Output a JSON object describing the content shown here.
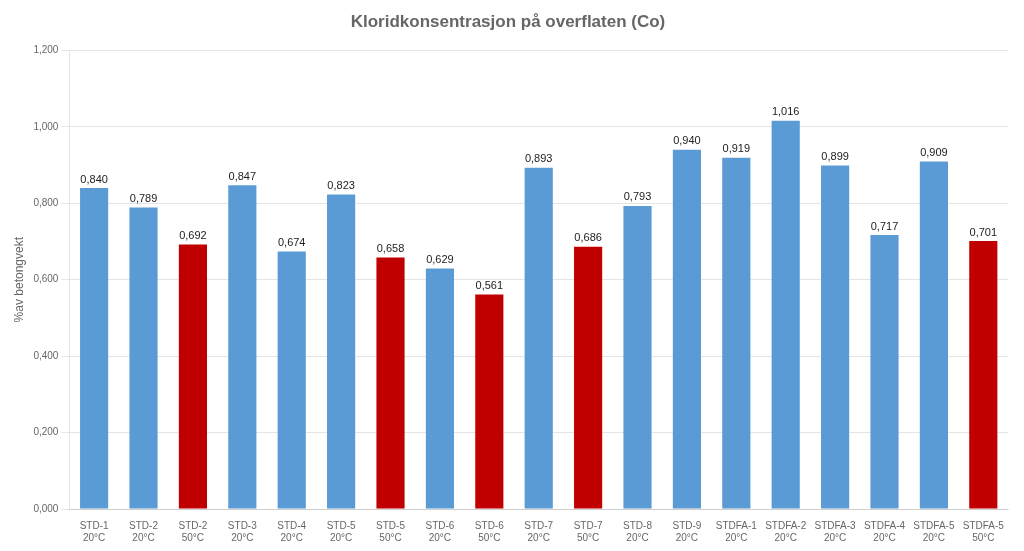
{
  "chart_data": {
    "type": "bar",
    "title": "Kloridkonsentrasjon på overflaten (Co)",
    "ylabel": "%av betongvekt",
    "categories": [
      "STD-1\n20°C",
      "STD-2\n20°C",
      "STD-2\n50°C",
      "STD-3\n20°C",
      "STD-4\n20°C",
      "STD-5\n20°C",
      "STD-5\n50°C",
      "STD-6\n20°C",
      "STD-6\n50°C",
      "STD-7\n20°C",
      "STD-7\n50°C",
      "STD-8\n20°C",
      "STD-9\n20°C",
      "STDFA-1\n20°C",
      "STDFA-2\n20°C",
      "STDFA-3\n20°C",
      "STDFA-4\n20°C",
      "STDFA-5\n20°C",
      "STDFA-5\n50°C"
    ],
    "values": [
      0.84,
      0.789,
      0.692,
      0.847,
      0.674,
      0.823,
      0.658,
      0.629,
      0.561,
      0.893,
      0.686,
      0.793,
      0.94,
      0.919,
      1.016,
      0.899,
      0.717,
      0.909,
      0.701
    ],
    "value_labels": [
      "0,840",
      "0,789",
      "0,692",
      "0,847",
      "0,674",
      "0,823",
      "0,658",
      "0,629",
      "0,561",
      "0,893",
      "0,686",
      "0,793",
      "0,940",
      "0,919",
      "1,016",
      "0,899",
      "0,717",
      "0,909",
      "0,701"
    ],
    "data_labels": true,
    "colors": [
      "#5b9bd5",
      "#5b9bd5",
      "#c00000",
      "#5b9bd5",
      "#5b9bd5",
      "#5b9bd5",
      "#c00000",
      "#5b9bd5",
      "#c00000",
      "#5b9bd5",
      "#c00000",
      "#5b9bd5",
      "#5b9bd5",
      "#5b9bd5",
      "#5b9bd5",
      "#5b9bd5",
      "#5b9bd5",
      "#5b9bd5",
      "#c00000"
    ],
    "ylim": [
      0,
      1.2
    ],
    "yticks": [
      {
        "value": 0.0,
        "label": "0,000"
      },
      {
        "value": 0.2,
        "label": "0,200"
      },
      {
        "value": 0.4,
        "label": "0,400"
      },
      {
        "value": 0.6,
        "label": "0,600"
      },
      {
        "value": 0.8,
        "label": "0,800"
      },
      {
        "value": 1.0,
        "label": "1,000"
      },
      {
        "value": 1.2,
        "label": "1,200"
      }
    ],
    "grid": true
  }
}
